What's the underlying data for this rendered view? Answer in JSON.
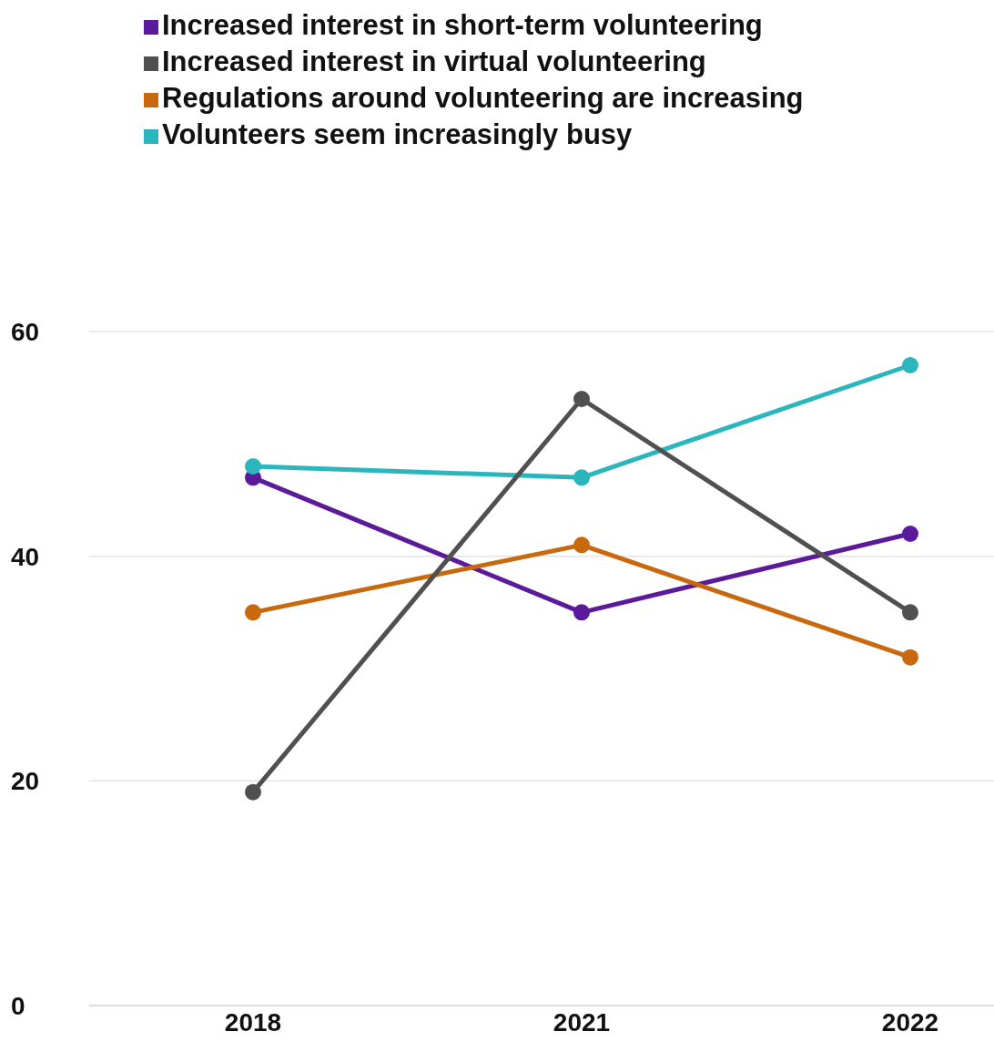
{
  "chart_data": {
    "type": "line",
    "categories": [
      "2018",
      "2021",
      "2022"
    ],
    "series": [
      {
        "name": "Increased interest in short-term volunteering",
        "color": "#5b1a9a",
        "values": [
          47,
          35,
          42
        ]
      },
      {
        "name": "Volunteers seem increasingly busy",
        "color": "#2bb5bd",
        "values": [
          48,
          47,
          57
        ]
      },
      {
        "name": "Regulations around volunteering are increasing",
        "color": "#c8690f",
        "values": [
          35,
          41,
          31
        ]
      },
      {
        "name": "Increased interest in virtual volunteering",
        "color": "#505050",
        "values": [
          19,
          54,
          35
        ]
      }
    ],
    "ylim": [
      0,
      60
    ],
    "yticks": [
      0,
      20,
      40,
      60
    ],
    "grid": "y",
    "legend": "top",
    "marker": "circle",
    "line_style": "solid"
  }
}
